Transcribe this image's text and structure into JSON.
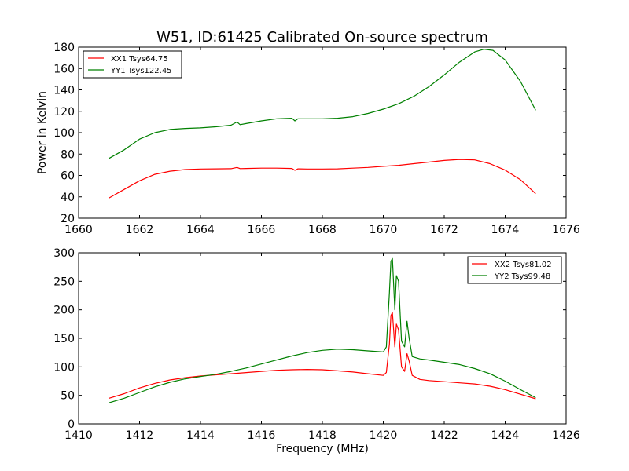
{
  "chart_data": [
    {
      "type": "line",
      "title": "W51, ID:61425 Calibrated On-source spectrum",
      "xlabel": "",
      "ylabel": "Power in Kelvin",
      "xlim": [
        1660,
        1676
      ],
      "ylim": [
        20,
        180
      ],
      "xticks": [
        1660,
        1662,
        1664,
        1666,
        1668,
        1670,
        1672,
        1674,
        1676
      ],
      "yticks": [
        20,
        40,
        60,
        80,
        100,
        120,
        140,
        160,
        180
      ],
      "grid": false,
      "legend": "top-left",
      "series": [
        {
          "name": "XX1 Tsys64.75",
          "color": "#ff0000",
          "x": [
            1661.0,
            1661.5,
            1662.0,
            1662.5,
            1663.0,
            1663.5,
            1664.0,
            1664.5,
            1665.0,
            1665.2,
            1665.3,
            1665.5,
            1666.0,
            1666.5,
            1667.0,
            1667.1,
            1667.2,
            1667.5,
            1668.0,
            1668.5,
            1669.0,
            1669.5,
            1670.0,
            1670.5,
            1671.0,
            1671.5,
            1672.0,
            1672.5,
            1673.0,
            1673.5,
            1674.0,
            1674.5,
            1675.0
          ],
          "y": [
            39,
            47,
            55,
            61,
            64,
            65.5,
            66,
            66.2,
            66.3,
            67.5,
            66.4,
            66.5,
            66.8,
            66.8,
            66.5,
            64.8,
            66.2,
            66,
            66,
            66.2,
            66.8,
            67.5,
            68.5,
            69.5,
            71,
            72.5,
            74,
            75,
            74.5,
            71,
            65,
            56,
            43
          ]
        },
        {
          "name": "YY1 Tsys122.45",
          "color": "#008000",
          "x": [
            1661.0,
            1661.5,
            1662.0,
            1662.5,
            1663.0,
            1663.5,
            1664.0,
            1664.5,
            1665.0,
            1665.2,
            1665.3,
            1665.5,
            1666.0,
            1666.5,
            1667.0,
            1667.1,
            1667.2,
            1667.5,
            1668.0,
            1668.5,
            1669.0,
            1669.5,
            1670.0,
            1670.5,
            1671.0,
            1671.5,
            1672.0,
            1672.5,
            1673.0,
            1673.3,
            1673.6,
            1674.0,
            1674.5,
            1675.0
          ],
          "y": [
            76,
            84,
            94,
            100,
            103,
            104,
            104.5,
            105.5,
            107,
            110,
            107.5,
            108.5,
            111,
            113,
            113.5,
            111,
            113,
            113,
            113,
            113.5,
            115,
            118,
            122,
            127,
            134,
            143,
            154,
            166,
            175.5,
            178,
            177,
            168,
            148,
            121
          ]
        }
      ]
    },
    {
      "type": "line",
      "title": "",
      "xlabel": "Frequency (MHz)",
      "ylabel": "",
      "xlim": [
        1410,
        1426
      ],
      "ylim": [
        0,
        300
      ],
      "xticks": [
        1410,
        1412,
        1414,
        1416,
        1418,
        1420,
        1422,
        1424,
        1426
      ],
      "yticks": [
        0,
        50,
        100,
        150,
        200,
        250,
        300
      ],
      "grid": false,
      "legend": "top-right",
      "series": [
        {
          "name": "XX2 Tsys81.02",
          "color": "#ff0000",
          "x": [
            1411.0,
            1411.5,
            1412.0,
            1412.5,
            1413.0,
            1413.5,
            1414.0,
            1414.5,
            1415.0,
            1415.5,
            1416.0,
            1416.5,
            1417.0,
            1417.5,
            1418.0,
            1418.5,
            1419.0,
            1419.5,
            1420.0,
            1420.1,
            1420.2,
            1420.25,
            1420.3,
            1420.38,
            1420.43,
            1420.5,
            1420.6,
            1420.7,
            1420.78,
            1420.85,
            1420.95,
            1421.2,
            1421.5,
            1422.0,
            1422.5,
            1423.0,
            1423.5,
            1424.0,
            1424.5,
            1425.0
          ],
          "y": [
            45,
            53,
            63,
            71,
            77,
            81,
            84,
            86,
            88,
            90,
            92,
            94,
            95,
            95.5,
            95,
            93,
            91,
            88,
            85,
            90,
            140,
            190,
            195,
            135,
            175,
            165,
            100,
            92,
            123,
            110,
            85,
            78,
            76,
            74,
            72,
            70,
            66,
            60,
            52,
            44
          ]
        },
        {
          "name": "YY2 Tsys99.48",
          "color": "#008000",
          "x": [
            1411.0,
            1411.5,
            1412.0,
            1412.5,
            1413.0,
            1413.5,
            1414.0,
            1414.5,
            1415.0,
            1415.5,
            1416.0,
            1416.5,
            1417.0,
            1417.5,
            1418.0,
            1418.5,
            1419.0,
            1419.5,
            1420.0,
            1420.1,
            1420.2,
            1420.25,
            1420.3,
            1420.38,
            1420.43,
            1420.5,
            1420.6,
            1420.7,
            1420.78,
            1420.85,
            1420.95,
            1421.2,
            1421.5,
            1422.0,
            1422.5,
            1423.0,
            1423.5,
            1424.0,
            1424.5,
            1425.0
          ],
          "y": [
            37,
            45,
            55,
            65,
            73,
            79,
            83,
            87,
            92,
            98,
            105,
            112,
            119,
            125,
            129,
            131,
            130,
            128,
            126,
            135,
            230,
            285,
            290,
            200,
            260,
            250,
            145,
            135,
            180,
            150,
            118,
            114,
            112,
            108,
            104,
            97,
            88,
            75,
            60,
            46
          ]
        }
      ]
    }
  ]
}
